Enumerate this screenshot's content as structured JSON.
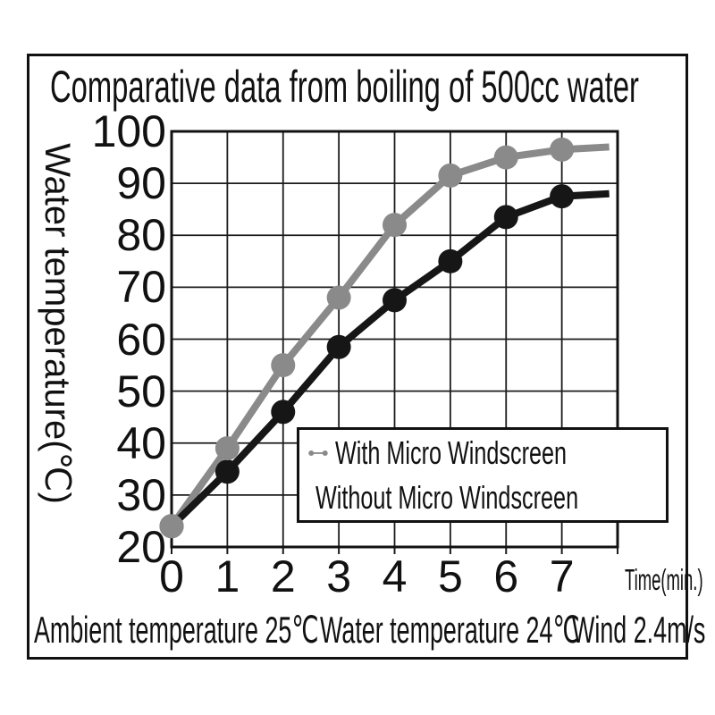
{
  "title": "Comparative data from boiling of 500cc water",
  "chart_data": {
    "type": "line",
    "title": "Comparative data from boiling of 500cc water",
    "xlabel": "Time(min.)",
    "ylabel": "Water temperature(℃)",
    "x": [
      0,
      1,
      2,
      3,
      4,
      5,
      6,
      7
    ],
    "xticks": [
      "0",
      "1",
      "2",
      "3",
      "4",
      "5",
      "6",
      "7"
    ],
    "yticks": [
      100,
      90,
      80,
      70,
      60,
      50,
      40,
      30,
      20
    ],
    "xlim": [
      0,
      8
    ],
    "ylim": [
      20,
      100
    ],
    "grid": true,
    "legend_position": "inside-bottom-right",
    "series": [
      {
        "name": "With Micro Windscreen",
        "color": "#8a8a8a",
        "values": [
          24,
          39,
          55,
          68,
          82,
          91.5,
          95,
          96.5
        ],
        "tail_x": 7.85,
        "tail_value": 97
      },
      {
        "name": "Without Micro Windscreen",
        "color": "#161616",
        "values": [
          24,
          34.5,
          46,
          58.5,
          67.5,
          75,
          83.5,
          87.5
        ],
        "tail_x": 7.85,
        "tail_value": 88
      }
    ],
    "colors": {
      "grid": "#1c1c1c",
      "axis": "#111111",
      "text": "#111111"
    }
  },
  "footnotes": [
    "Ambient temperature 25℃",
    "Water temperature 24℃",
    "Wind 2.4m/s"
  ]
}
